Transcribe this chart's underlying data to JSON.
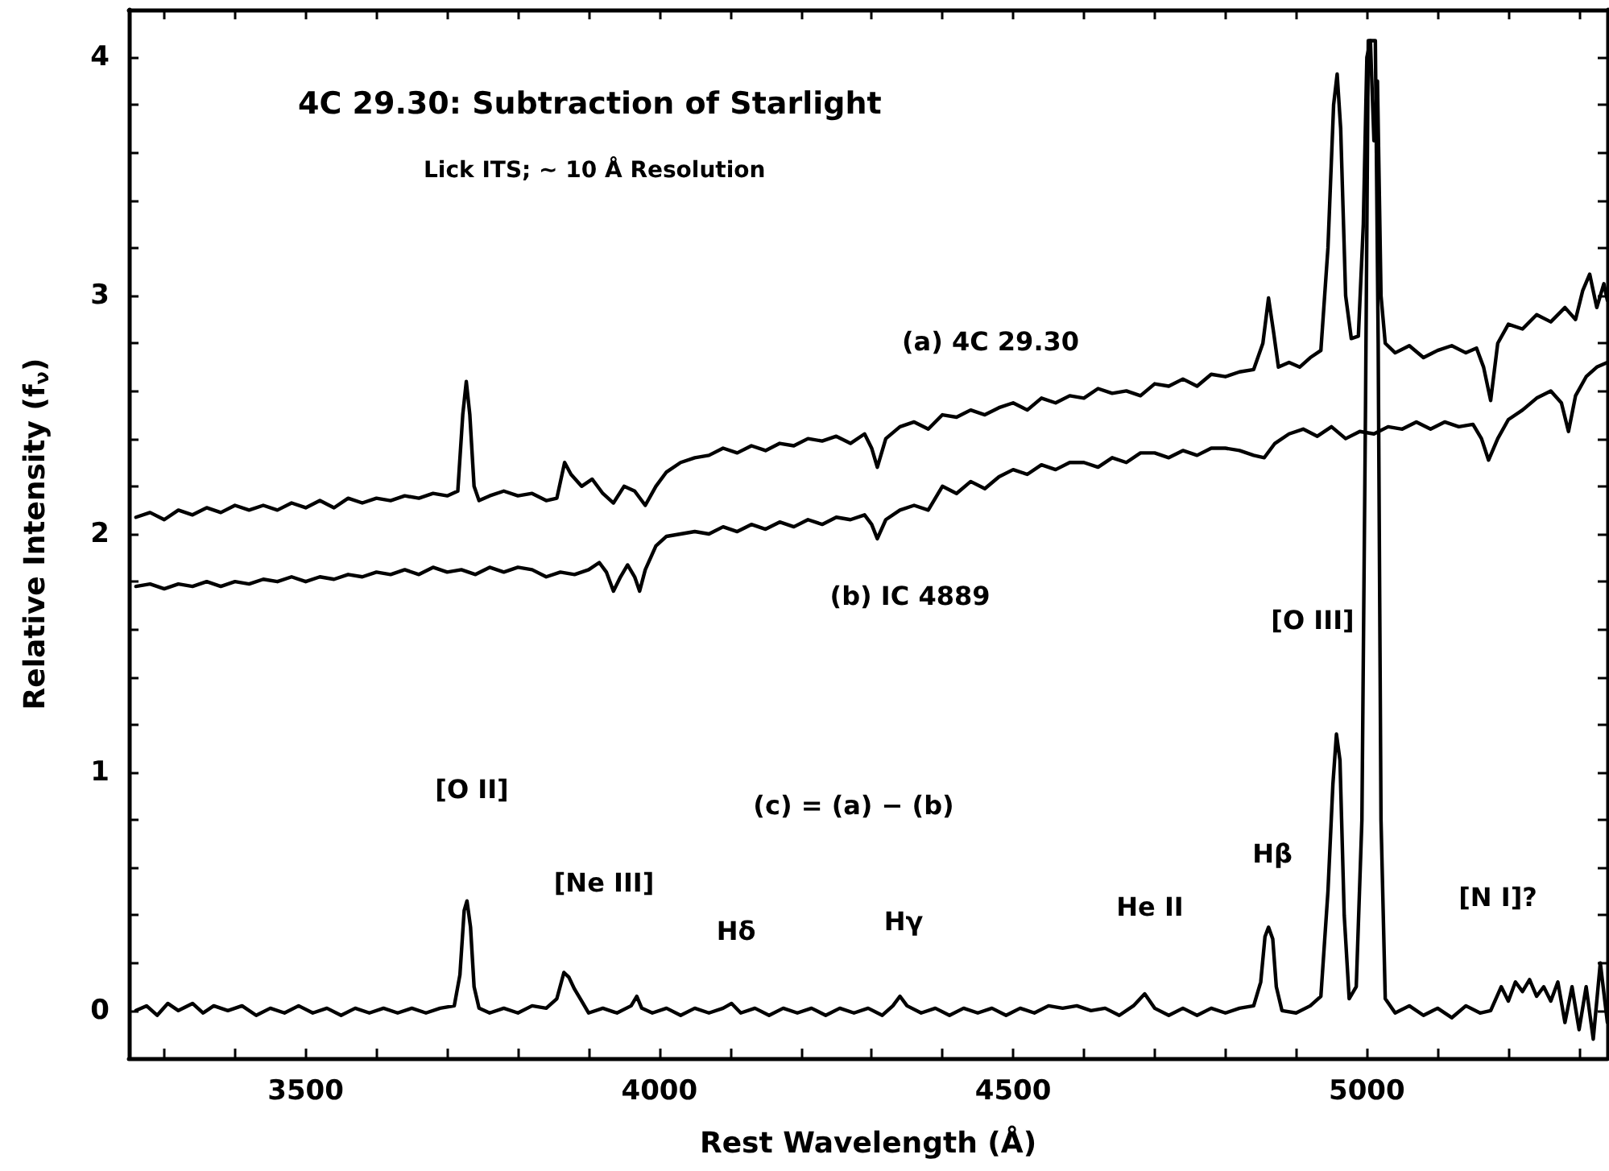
{
  "chart_data": {
    "type": "line",
    "title": "4C 29.30: Subtraction of Starlight",
    "subtitle": "Lick ITS; ~ 10 Å Resolution",
    "xlabel": "Rest Wavelength (Å)",
    "ylabel": "Relative Intensity (f$_{ν}$)",
    "xlim": [
      3250,
      5340
    ],
    "ylim": [
      -0.2,
      4.2
    ],
    "xticks": [
      {
        "value": 3300,
        "label": null
      },
      {
        "value": 3400,
        "label": null
      },
      3500,
      {
        "value": 3600,
        "label": null
      },
      {
        "value": 3700,
        "label": null
      },
      {
        "value": 3800,
        "label": null
      },
      {
        "value": 3900,
        "label": null
      },
      4000,
      {
        "value": 4100,
        "label": null
      },
      {
        "value": 4200,
        "label": null
      },
      {
        "value": 4300,
        "label": null
      },
      {
        "value": 4400,
        "label": null
      },
      4500,
      {
        "value": 4600,
        "label": null
      },
      {
        "value": 4700,
        "label": null
      },
      {
        "value": 4800,
        "label": null
      },
      {
        "value": 4900,
        "label": null
      },
      5000,
      {
        "value": 5100,
        "label": null
      },
      {
        "value": 5200,
        "label": null
      },
      {
        "value": 5300,
        "label": null
      }
    ],
    "yticks": [
      0,
      {
        "value": 0.2,
        "label": null
      },
      {
        "value": 0.4,
        "label": null
      },
      {
        "value": 0.6,
        "label": null
      },
      {
        "value": 0.8,
        "label": null
      },
      1,
      {
        "value": 1.2,
        "label": null
      },
      {
        "value": 1.4,
        "label": null
      },
      {
        "value": 1.6,
        "label": null
      },
      {
        "value": 1.8,
        "label": null
      },
      2,
      {
        "value": 2.2,
        "label": null
      },
      {
        "value": 2.4,
        "label": null
      },
      {
        "value": 2.6,
        "label": null
      },
      {
        "value": 2.8,
        "label": null
      },
      3,
      {
        "value": 3.2,
        "label": null
      },
      {
        "value": 3.4,
        "label": null
      },
      {
        "value": 3.6,
        "label": null
      },
      {
        "value": 3.8,
        "label": null
      },
      4
    ],
    "grid": false,
    "marker": "none",
    "line_style": "solid",
    "series": [
      {
        "color": "#000000",
        "x": [
          3260,
          3280,
          3300,
          3320,
          3340,
          3360,
          3380,
          3400,
          3420,
          3440,
          3460,
          3480,
          3500,
          3520,
          3540,
          3560,
          3580,
          3600,
          3620,
          3640,
          3660,
          3680,
          3700,
          3715,
          3722,
          3727,
          3732,
          3738,
          3745,
          3760,
          3780,
          3800,
          3820,
          3840,
          3855,
          3866,
          3875,
          3890,
          3905,
          3920,
          3935,
          3950,
          3965,
          3980,
          3995,
          4010,
          4030,
          4050,
          4070,
          4090,
          4110,
          4130,
          4150,
          4170,
          4190,
          4210,
          4230,
          4250,
          4270,
          4290,
          4300,
          4308,
          4320,
          4340,
          4360,
          4380,
          4400,
          4420,
          4440,
          4460,
          4480,
          4500,
          4520,
          4540,
          4560,
          4580,
          4600,
          4620,
          4640,
          4660,
          4680,
          4700,
          4720,
          4740,
          4760,
          4780,
          4800,
          4820,
          4840,
          4853,
          4861,
          4868,
          4875,
          4890,
          4905,
          4920,
          4935,
          4945,
          4953,
          4958,
          4963,
          4970,
          4978,
          4988,
          4995,
          5000,
          5005,
          5010,
          5015,
          5020,
          5026,
          5040,
          5060,
          5080,
          5100,
          5120,
          5140,
          5155,
          5165,
          5175,
          5185,
          5200,
          5220,
          5240,
          5260,
          5280,
          5295,
          5305,
          5315,
          5325,
          5335,
          5340
        ],
        "values": [
          2.07,
          2.09,
          2.06,
          2.1,
          2.08,
          2.11,
          2.09,
          2.12,
          2.1,
          2.12,
          2.1,
          2.13,
          2.11,
          2.14,
          2.11,
          2.15,
          2.13,
          2.15,
          2.14,
          2.16,
          2.15,
          2.17,
          2.16,
          2.18,
          2.5,
          2.64,
          2.5,
          2.2,
          2.14,
          2.16,
          2.18,
          2.16,
          2.17,
          2.14,
          2.15,
          2.3,
          2.25,
          2.2,
          2.23,
          2.17,
          2.13,
          2.2,
          2.18,
          2.12,
          2.2,
          2.26,
          2.3,
          2.32,
          2.33,
          2.36,
          2.34,
          2.37,
          2.35,
          2.38,
          2.37,
          2.4,
          2.39,
          2.41,
          2.38,
          2.42,
          2.36,
          2.28,
          2.4,
          2.45,
          2.47,
          2.44,
          2.5,
          2.49,
          2.52,
          2.5,
          2.53,
          2.55,
          2.52,
          2.57,
          2.55,
          2.58,
          2.57,
          2.61,
          2.59,
          2.6,
          2.58,
          2.63,
          2.62,
          2.65,
          2.62,
          2.67,
          2.66,
          2.68,
          2.69,
          2.8,
          2.99,
          2.85,
          2.7,
          2.72,
          2.7,
          2.74,
          2.77,
          3.2,
          3.8,
          3.93,
          3.7,
          3.0,
          2.82,
          2.83,
          3.3,
          4.0,
          4.07,
          3.65,
          3.9,
          3.0,
          2.8,
          2.76,
          2.79,
          2.74,
          2.77,
          2.79,
          2.76,
          2.78,
          2.7,
          2.56,
          2.8,
          2.88,
          2.86,
          2.92,
          2.89,
          2.95,
          2.9,
          3.02,
          3.09,
          2.95,
          3.05,
          2.98
        ]
      },
      {
        "color": "#000000",
        "x": [
          3260,
          3280,
          3300,
          3320,
          3340,
          3360,
          3380,
          3400,
          3420,
          3440,
          3460,
          3480,
          3500,
          3520,
          3540,
          3560,
          3580,
          3600,
          3620,
          3640,
          3660,
          3680,
          3700,
          3720,
          3740,
          3760,
          3780,
          3800,
          3820,
          3840,
          3860,
          3880,
          3900,
          3915,
          3925,
          3935,
          3945,
          3955,
          3965,
          3972,
          3980,
          3995,
          4010,
          4030,
          4050,
          4070,
          4090,
          4110,
          4130,
          4150,
          4170,
          4190,
          4210,
          4230,
          4250,
          4270,
          4290,
          4300,
          4308,
          4320,
          4340,
          4360,
          4380,
          4400,
          4420,
          4440,
          4460,
          4480,
          4500,
          4520,
          4540,
          4560,
          4580,
          4600,
          4620,
          4640,
          4660,
          4680,
          4700,
          4720,
          4740,
          4760,
          4780,
          4800,
          4820,
          4840,
          4855,
          4870,
          4890,
          4910,
          4930,
          4950,
          4970,
          4990,
          5010,
          5030,
          5050,
          5070,
          5090,
          5110,
          5130,
          5150,
          5162,
          5172,
          5185,
          5200,
          5220,
          5240,
          5260,
          5275,
          5285,
          5295,
          5310,
          5325,
          5340
        ],
        "values": [
          1.78,
          1.79,
          1.77,
          1.79,
          1.78,
          1.8,
          1.78,
          1.8,
          1.79,
          1.81,
          1.8,
          1.82,
          1.8,
          1.82,
          1.81,
          1.83,
          1.82,
          1.84,
          1.83,
          1.85,
          1.83,
          1.86,
          1.84,
          1.85,
          1.83,
          1.86,
          1.84,
          1.86,
          1.85,
          1.82,
          1.84,
          1.83,
          1.85,
          1.88,
          1.84,
          1.76,
          1.82,
          1.87,
          1.82,
          1.76,
          1.85,
          1.95,
          1.99,
          2.0,
          2.01,
          2.0,
          2.03,
          2.01,
          2.04,
          2.02,
          2.05,
          2.03,
          2.06,
          2.04,
          2.07,
          2.06,
          2.08,
          2.04,
          1.98,
          2.06,
          2.1,
          2.12,
          2.1,
          2.2,
          2.17,
          2.22,
          2.19,
          2.24,
          2.27,
          2.25,
          2.29,
          2.27,
          2.3,
          2.3,
          2.28,
          2.32,
          2.3,
          2.34,
          2.34,
          2.32,
          2.35,
          2.33,
          2.36,
          2.36,
          2.35,
          2.33,
          2.32,
          2.38,
          2.42,
          2.44,
          2.41,
          2.45,
          2.4,
          2.43,
          2.42,
          2.45,
          2.44,
          2.47,
          2.44,
          2.47,
          2.45,
          2.46,
          2.4,
          2.31,
          2.4,
          2.48,
          2.52,
          2.57,
          2.6,
          2.55,
          2.43,
          2.58,
          2.66,
          2.7,
          2.72
        ]
      },
      {
        "color": "#000000",
        "x": [
          3260,
          3275,
          3290,
          3305,
          3320,
          3340,
          3355,
          3370,
          3390,
          3410,
          3430,
          3450,
          3470,
          3490,
          3510,
          3530,
          3550,
          3570,
          3590,
          3610,
          3630,
          3650,
          3670,
          3690,
          3710,
          3718,
          3724,
          3728,
          3733,
          3738,
          3745,
          3760,
          3780,
          3800,
          3820,
          3840,
          3855,
          3865,
          3872,
          3880,
          3890,
          3900,
          3920,
          3940,
          3960,
          3968,
          3975,
          3990,
          4010,
          4030,
          4050,
          4070,
          4090,
          4102,
          4115,
          4135,
          4155,
          4175,
          4195,
          4215,
          4235,
          4255,
          4275,
          4295,
          4315,
          4330,
          4340,
          4350,
          4370,
          4390,
          4410,
          4430,
          4450,
          4470,
          4490,
          4510,
          4530,
          4550,
          4570,
          4590,
          4610,
          4630,
          4650,
          4670,
          4686,
          4700,
          4720,
          4740,
          4760,
          4780,
          4800,
          4820,
          4840,
          4850,
          4856,
          4861,
          4867,
          4872,
          4880,
          4900,
          4920,
          4935,
          4945,
          4952,
          4957,
          4962,
          4968,
          4975,
          4985,
          4993,
          4998,
          5002,
          5012,
          5016,
          5020,
          5026,
          5040,
          5060,
          5080,
          5100,
          5120,
          5140,
          5160,
          5175,
          5190,
          5200,
          5210,
          5220,
          5230,
          5240,
          5250,
          5260,
          5270,
          5280,
          5290,
          5300,
          5310,
          5320,
          5330,
          5340
        ],
        "values": [
          0,
          0.02,
          -0.02,
          0.03,
          0,
          0.03,
          -0.01,
          0.02,
          0,
          0.02,
          -0.02,
          0.01,
          -0.01,
          0.02,
          -0.01,
          0.01,
          -0.02,
          0.01,
          -0.01,
          0.01,
          -0.01,
          0.01,
          -0.01,
          0.01,
          0.02,
          0.15,
          0.42,
          0.46,
          0.35,
          0.1,
          0.01,
          -0.01,
          0.01,
          -0.01,
          0.02,
          0.01,
          0.05,
          0.16,
          0.14,
          0.09,
          0.04,
          -0.01,
          0.01,
          -0.01,
          0.02,
          0.06,
          0.01,
          -0.01,
          0.01,
          -0.02,
          0.01,
          -0.01,
          0.01,
          0.03,
          -0.01,
          0.01,
          -0.02,
          0.01,
          -0.01,
          0.01,
          -0.02,
          0.01,
          -0.01,
          0.01,
          -0.02,
          0.02,
          0.06,
          0.02,
          -0.01,
          0.01,
          -0.02,
          0.01,
          -0.01,
          0.01,
          -0.02,
          0.01,
          -0.01,
          0.02,
          0.01,
          0.02,
          0,
          0.01,
          -0.02,
          0.02,
          0.07,
          0.01,
          -0.02,
          0.01,
          -0.02,
          0.01,
          -0.01,
          0.01,
          0.02,
          0.12,
          0.31,
          0.35,
          0.3,
          0.1,
          0,
          -0.01,
          0.02,
          0.06,
          0.5,
          0.95,
          1.16,
          1.05,
          0.4,
          0.05,
          0.1,
          0.8,
          2.5,
          4.07,
          4.07,
          2.8,
          0.8,
          0.05,
          -0.01,
          0.02,
          -0.02,
          0.01,
          -0.03,
          0.02,
          -0.01,
          0,
          0.1,
          0.04,
          0.12,
          0.08,
          0.13,
          0.06,
          0.1,
          0.04,
          0.12,
          -0.05,
          0.1,
          -0.08,
          0.1,
          -0.12,
          0.2,
          -0.05
        ]
      }
    ],
    "annotations": [
      "(a) 4C 29.30",
      "(b) IC 4889",
      "(c) = (a) − (b)",
      "[O II]",
      "[Ne III]",
      "Hδ",
      "Hγ",
      "He II",
      "Hβ",
      "[O III]",
      "[N I]?"
    ]
  }
}
